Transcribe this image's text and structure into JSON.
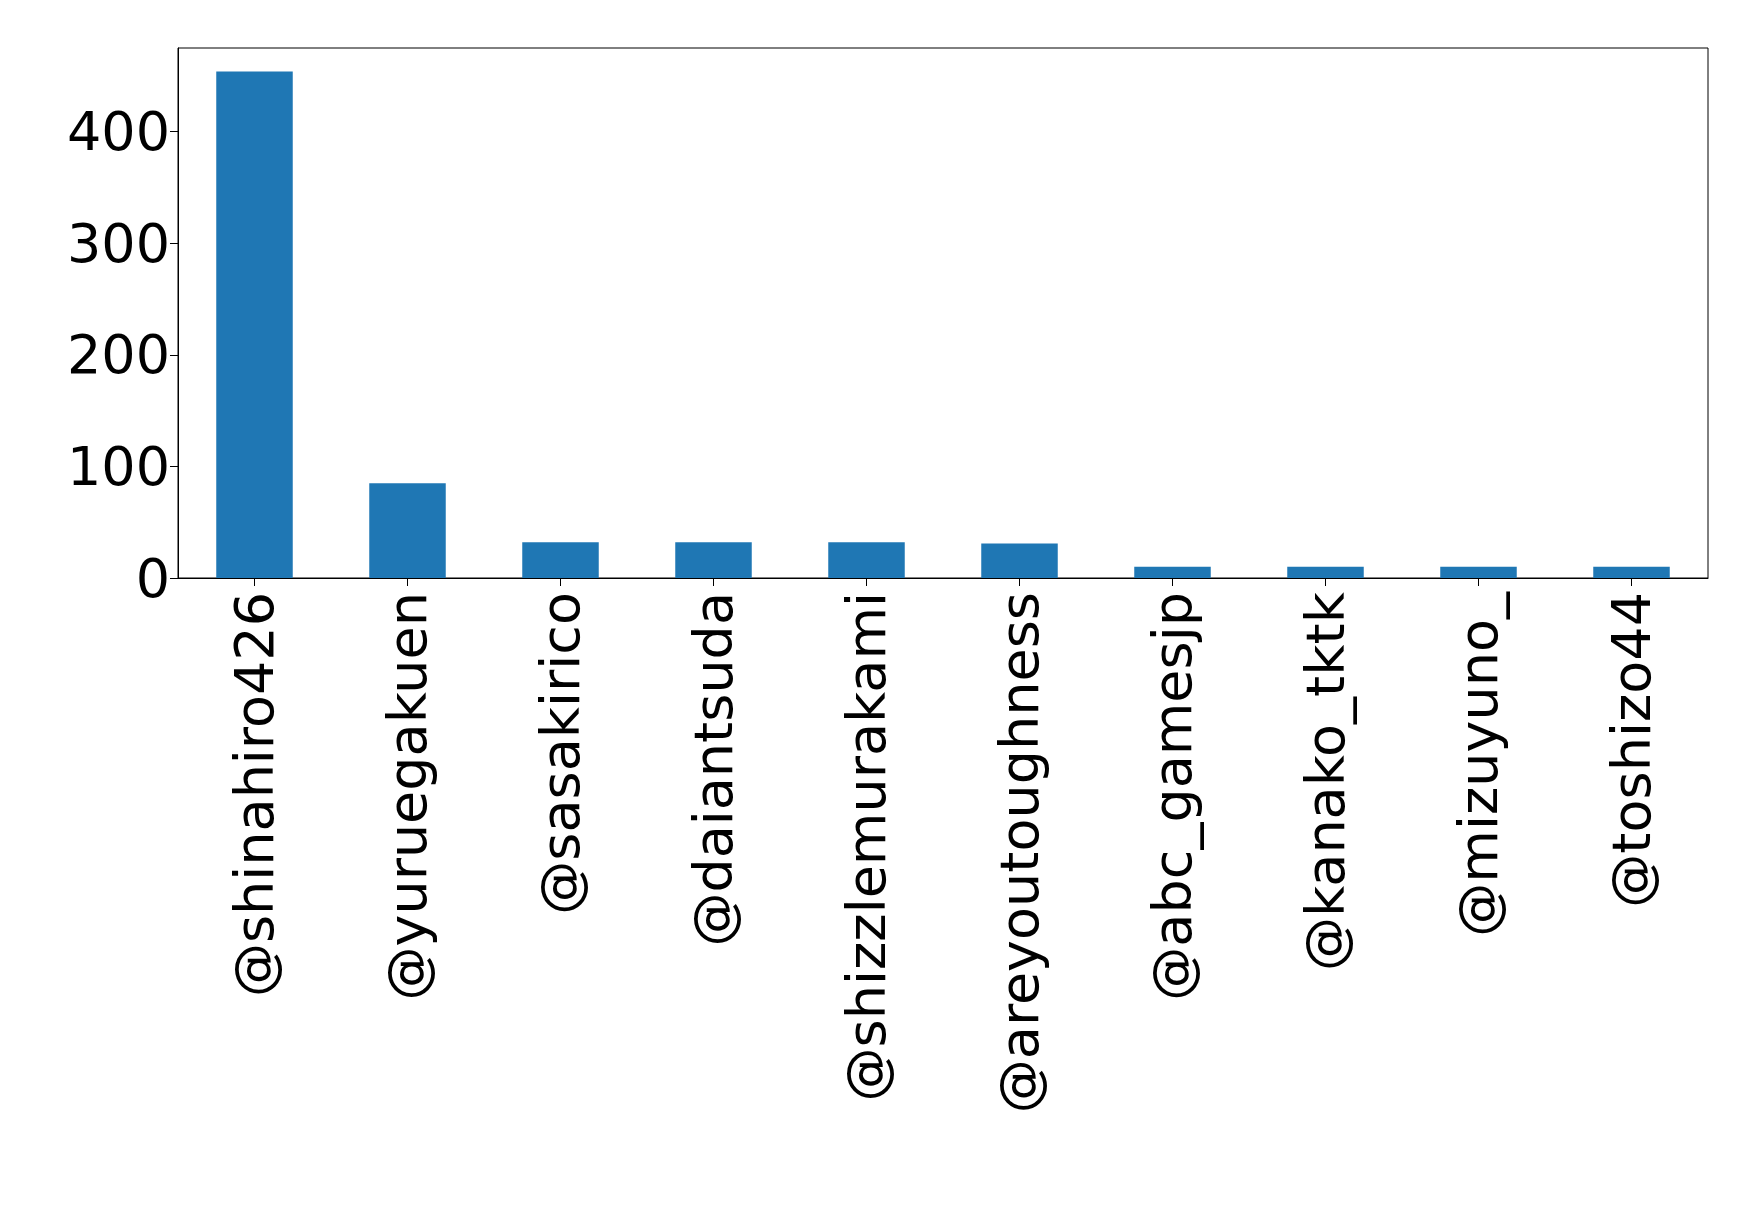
{
  "chart_data": {
    "type": "bar",
    "categories": [
      "@shinahiro426",
      "@yuruegakuen",
      "@sasakirico",
      "@daiantsuda",
      "@shizzlemurakami",
      "@areyoutoughness",
      "@abc_gamesjp",
      "@kanako_tktk",
      "@mizuyuno_",
      "@toshizo44"
    ],
    "values": [
      454,
      85,
      32,
      32,
      32,
      31,
      10,
      10,
      10,
      10
    ],
    "color": "#1f77b4",
    "ylim": [
      0,
      475
    ],
    "yticks": [
      0,
      100,
      200,
      300,
      400
    ]
  }
}
